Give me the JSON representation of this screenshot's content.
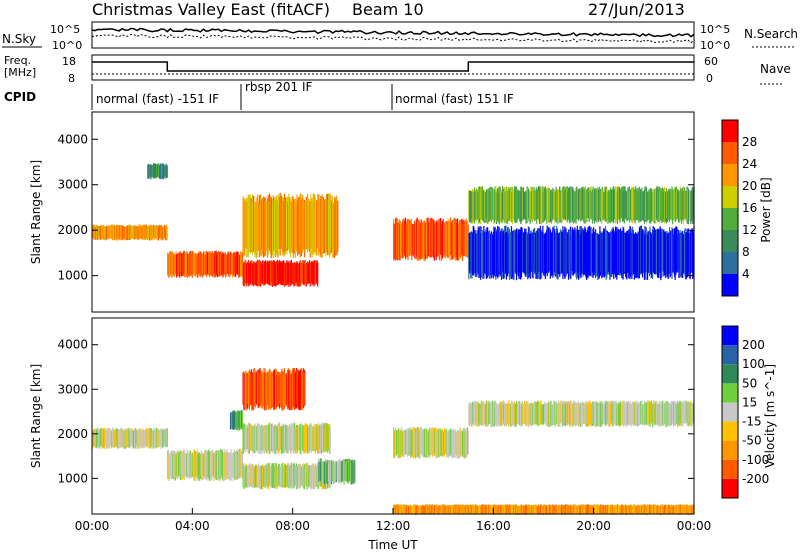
{
  "header": {
    "title": "Christmas Valley East (fitACF)",
    "beam": "Beam 10",
    "date": "27/Jun/2013"
  },
  "noise_panel": {
    "left_label": "N.Sky",
    "right_label": "N.Search",
    "left_ticks": [
      "10^5",
      "10^0"
    ],
    "right_ticks": [
      "10^5",
      "10^0"
    ]
  },
  "freq_panel": {
    "left_label_1": "Freq.",
    "left_label_2": "[MHz]",
    "right_label": "Nave",
    "left_ticks": [
      "18",
      "8"
    ],
    "right_ticks": [
      "60",
      "0"
    ]
  },
  "cpid_panel": {
    "label": "CPID",
    "modes": [
      {
        "label": "normal (fast) -151 IF",
        "start_hour": 0
      },
      {
        "label": "rbsp 201 IF",
        "start_hour": 6.2
      },
      {
        "label": "normal (fast) 151 IF",
        "start_hour": 12.0
      }
    ]
  },
  "xaxis": {
    "title": "Time UT",
    "tick_labels": [
      "00:00",
      "04:00",
      "08:00",
      "12:00",
      "16:00",
      "20:00",
      "00:00"
    ]
  },
  "colors": {
    "power": [
      "#0000ff",
      "#2e6fa0",
      "#3a8a5a",
      "#4faf3a",
      "#cfcf00",
      "#ff9800",
      "#ff5a00",
      "#ff0000"
    ],
    "velocity": [
      "#ff0000",
      "#ff5a00",
      "#ff9800",
      "#ffc200",
      "#c8c8c8",
      "#6fd03c",
      "#2e8b57",
      "#2a62a8",
      "#0000ff"
    ]
  },
  "chart_data": [
    {
      "type": "heatmap",
      "panel": "power",
      "ylabel": "Slant Range [km]",
      "ylim": [
        200,
        4600
      ],
      "yticks": [
        "1000",
        "2000",
        "3000",
        "4000"
      ],
      "xlabel": "Time UT",
      "xlim": [
        0,
        24
      ],
      "colorbar_label": "Power [dB]",
      "colorbar_ticks": [
        "4",
        "8",
        "12",
        "16",
        "20",
        "24",
        "28"
      ],
      "bands": [
        {
          "t0": 0.0,
          "t1": 3.0,
          "r0": 1800,
          "r1": 2100,
          "level": 5
        },
        {
          "t0": 3.0,
          "t1": 6.0,
          "r0": 1000,
          "r1": 1500,
          "level": 6
        },
        {
          "t0": 6.0,
          "t1": 9.8,
          "r0": 1500,
          "r1": 2700,
          "level": 5
        },
        {
          "t0": 2.2,
          "t1": 3.0,
          "r0": 3150,
          "r1": 3450,
          "level": 2
        },
        {
          "t0": 6.0,
          "t1": 9.0,
          "r0": 800,
          "r1": 1300,
          "level": 7
        },
        {
          "t0": 12.0,
          "t1": 15.0,
          "r0": 1400,
          "r1": 2200,
          "level": 6
        },
        {
          "t0": 15.0,
          "t1": 24.0,
          "r0": 2200,
          "r1": 2900,
          "level": 3
        },
        {
          "t0": 15.0,
          "t1": 24.0,
          "r0": 1000,
          "r1": 2000,
          "level": 0
        }
      ]
    },
    {
      "type": "heatmap",
      "panel": "velocity",
      "ylabel": "Slant Range [km]",
      "ylim": [
        200,
        4600
      ],
      "yticks": [
        "1000",
        "2000",
        "3000",
        "4000"
      ],
      "xlabel": "Time UT",
      "xlim": [
        0,
        24
      ],
      "colorbar_label": "Velocity [m s^-1]",
      "colorbar_ticks": [
        "200",
        "100",
        "50",
        "15",
        "-15",
        "-50",
        "-100",
        "-200"
      ],
      "bands": [
        {
          "t0": 0.0,
          "t1": 3.0,
          "r0": 1700,
          "r1": 2100,
          "level": 4
        },
        {
          "t0": 3.0,
          "t1": 6.0,
          "r0": 1000,
          "r1": 1600,
          "level": 4
        },
        {
          "t0": 6.0,
          "t1": 9.5,
          "r0": 1600,
          "r1": 2200,
          "level": 4
        },
        {
          "t0": 6.0,
          "t1": 8.5,
          "r0": 2600,
          "r1": 3400,
          "level": 1
        },
        {
          "t0": 6.0,
          "t1": 9.5,
          "r0": 800,
          "r1": 1300,
          "level": 4
        },
        {
          "t0": 9.0,
          "t1": 10.5,
          "r0": 900,
          "r1": 1400,
          "level": 5
        },
        {
          "t0": 5.5,
          "t1": 6.0,
          "r0": 2100,
          "r1": 2500,
          "level": 6
        },
        {
          "t0": 12.0,
          "t1": 15.0,
          "r0": 1500,
          "r1": 2100,
          "level": 4
        },
        {
          "t0": 15.0,
          "t1": 24.0,
          "r0": 2200,
          "r1": 2700,
          "level": 4
        },
        {
          "t0": 12.0,
          "t1": 24.0,
          "r0": 200,
          "r1": 400,
          "level": 2
        }
      ]
    }
  ]
}
